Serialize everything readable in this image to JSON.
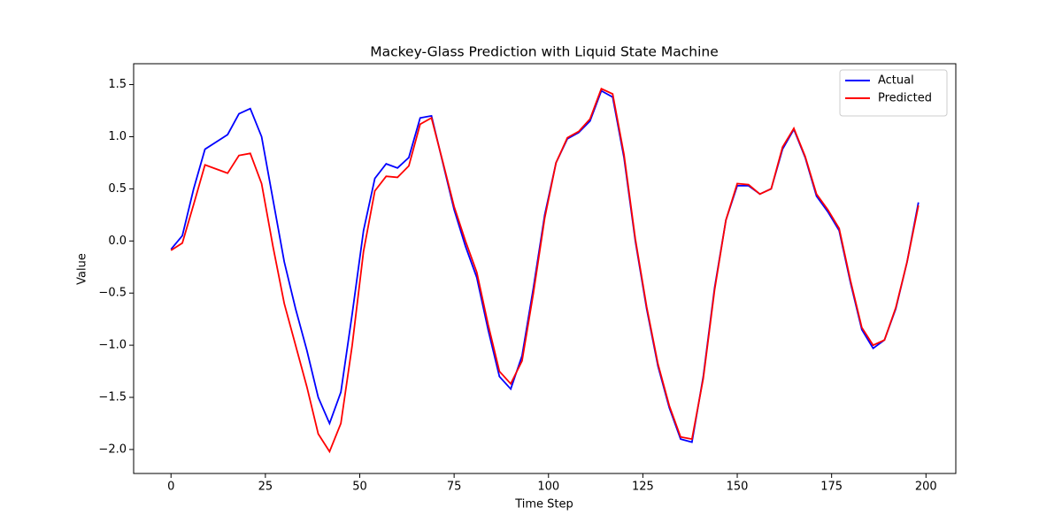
{
  "chart_data": {
    "type": "line",
    "title": "Mackey-Glass Prediction with Liquid State Machine",
    "xlabel": "Time Step",
    "ylabel": "Value",
    "x": [
      0,
      3,
      6,
      9,
      12,
      15,
      18,
      21,
      24,
      27,
      30,
      33,
      36,
      39,
      42,
      45,
      48,
      51,
      54,
      57,
      60,
      63,
      66,
      69,
      72,
      75,
      78,
      81,
      84,
      87,
      90,
      93,
      96,
      99,
      102,
      105,
      108,
      111,
      114,
      117,
      120,
      123,
      126,
      129,
      132,
      135,
      138,
      141,
      144,
      147,
      150,
      153,
      156,
      159,
      162,
      165,
      168,
      171,
      174,
      177,
      180,
      183,
      186,
      189,
      192,
      195,
      198
    ],
    "series": [
      {
        "name": "Actual",
        "color": "#0000ff",
        "values": [
          -0.08,
          0.05,
          0.5,
          0.88,
          0.95,
          1.02,
          1.22,
          1.27,
          1.0,
          0.4,
          -0.2,
          -0.65,
          -1.05,
          -1.5,
          -1.75,
          -1.45,
          -0.7,
          0.1,
          0.6,
          0.74,
          0.7,
          0.8,
          1.18,
          1.2,
          0.75,
          0.3,
          -0.05,
          -0.35,
          -0.85,
          -1.3,
          -1.42,
          -1.1,
          -0.45,
          0.25,
          0.75,
          0.98,
          1.04,
          1.15,
          1.44,
          1.38,
          0.8,
          0.0,
          -0.65,
          -1.2,
          -1.6,
          -1.9,
          -1.93,
          -1.3,
          -0.45,
          0.2,
          0.53,
          0.53,
          0.45,
          0.5,
          0.88,
          1.07,
          0.8,
          0.43,
          0.28,
          0.1,
          -0.4,
          -0.85,
          -1.03,
          -0.95,
          -0.65,
          -0.2,
          0.37
        ]
      },
      {
        "name": "Predicted",
        "color": "#ff0000",
        "values": [
          -0.09,
          -0.02,
          0.35,
          0.73,
          0.69,
          0.65,
          0.82,
          0.84,
          0.55,
          -0.05,
          -0.6,
          -1.0,
          -1.4,
          -1.85,
          -2.02,
          -1.75,
          -1.0,
          -0.1,
          0.48,
          0.62,
          0.61,
          0.72,
          1.12,
          1.18,
          0.76,
          0.33,
          0.0,
          -0.3,
          -0.8,
          -1.25,
          -1.37,
          -1.15,
          -0.5,
          0.22,
          0.75,
          0.99,
          1.05,
          1.17,
          1.46,
          1.41,
          0.83,
          0.02,
          -0.63,
          -1.18,
          -1.58,
          -1.88,
          -1.9,
          -1.32,
          -0.47,
          0.2,
          0.55,
          0.54,
          0.45,
          0.5,
          0.9,
          1.08,
          0.81,
          0.45,
          0.3,
          0.12,
          -0.38,
          -0.83,
          -1.0,
          -0.95,
          -0.64,
          -0.2,
          0.34
        ]
      }
    ],
    "xlim": [
      -9.9,
      207.9
    ],
    "ylim": [
      -2.23,
      1.7
    ],
    "xticks": [
      0,
      25,
      50,
      75,
      100,
      125,
      150,
      175,
      200
    ],
    "yticks": [
      {
        "value": -2,
        "label": "−2.0"
      },
      {
        "value": -1.5,
        "label": "−1.5"
      },
      {
        "value": -1,
        "label": "−1.0"
      },
      {
        "value": -0.5,
        "label": "−0.5"
      },
      {
        "value": 0,
        "label": "0.0"
      },
      0.5,
      {
        "value": 1,
        "label": "1.0"
      },
      1.5
    ],
    "legend": "upper right"
  }
}
